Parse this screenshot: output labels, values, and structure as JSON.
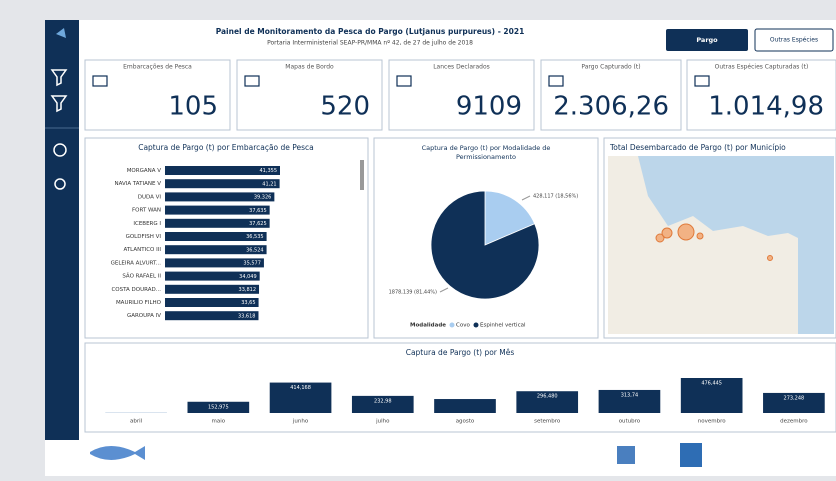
{
  "header": {
    "title": "Painel de Monitoramento da Pesca do Pargo (Lutjanus purpureus) - 2021",
    "subtitle": "Portaria Interministerial SEAP-PR/MMA nº 42, de 27 de julho de 2018",
    "buttons": [
      "Pargo",
      "Outras Espécies"
    ]
  },
  "kpis": [
    {
      "label": "Embarcações de Pesca",
      "value": 105
    },
    {
      "label": "Mapas de Bordo",
      "value": 520
    },
    {
      "label": "Lances Declarados",
      "value": 9109
    },
    {
      "label": "Pargo Capturado (t)",
      "value": "2.306,26"
    },
    {
      "label": "Outras Espécies Capturadas (t)",
      "value": "1.014,98"
    }
  ],
  "vessel_chart": {
    "type": "bar",
    "title": "Captura de Pargo (t) por Embarcação de Pesca",
    "categories": [
      "MORGANA V",
      "NAVIA TATIANE V",
      "DUDA VI",
      "FORT WAN",
      "ICEBERG I",
      "GOLDFISH VI",
      "ATLANTICO III",
      "GELEIRA ALVURT...",
      "SÃO RAFAEL II",
      "COSTA DOURAD...",
      "MAURILIO FILHO",
      "GAROUPA IV"
    ],
    "values": [
      41.355,
      41.21,
      39.326,
      37.635,
      37.625,
      36.535,
      36.524,
      35.577,
      34.049,
      33.812,
      33.65,
      33.618
    ],
    "value_labels": [
      "41,355",
      "41,21",
      "39,326",
      "37,635",
      "37,625",
      "36,535",
      "36,524",
      "35,577",
      "34,049",
      "33,812",
      "33,65",
      "33,618"
    ],
    "color": "#0f3057"
  },
  "pie_chart": {
    "type": "pie",
    "title": "Captura de Pargo (t) por Modalidade de Permissionamento",
    "legend_title": "Modalidade",
    "series": [
      {
        "name": "Covo",
        "color": "#a9cdf0",
        "value": 428.117,
        "value_label": "428,117 (18,56%)"
      },
      {
        "name": "Espinhel vertical",
        "color": "#0f3057",
        "value": 1878.139,
        "value_label": "1878,139 (81,44%)"
      }
    ]
  },
  "map": {
    "title": "Total Desembarcado de Pargo (t) por Município"
  },
  "month_chart": {
    "type": "bar",
    "title": "Captura de Pargo (t) por Mês",
    "categories": [
      "abril",
      "maio",
      "junho",
      "julho",
      "agosto",
      "setembro",
      "outubro",
      "novembro",
      "dezembro"
    ],
    "values": [
      5,
      152.975,
      414.168,
      232.98,
      190,
      296.48,
      313.74,
      476.445,
      273.248
    ],
    "value_labels": [
      null,
      "152,975",
      "414,168",
      "232,98",
      null,
      "296,480",
      "313,74",
      "476,445",
      "273,248"
    ],
    "color": "#0f3057"
  }
}
